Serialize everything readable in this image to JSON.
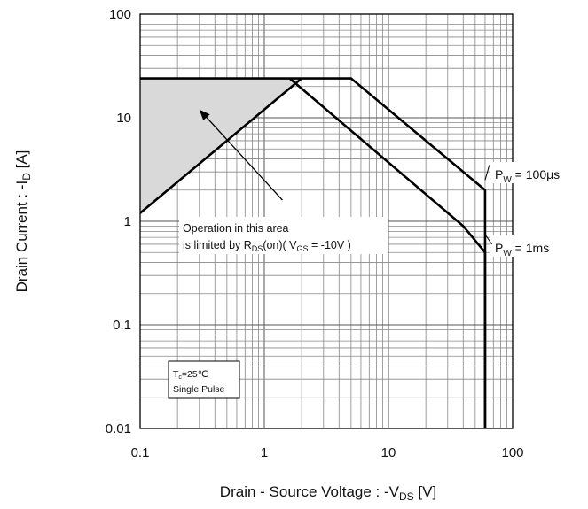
{
  "chart_data": {
    "type": "line",
    "x_scale": "log",
    "y_scale": "log",
    "xlim": [
      0.1,
      100
    ],
    "ylim": [
      0.01,
      100
    ],
    "grid": true,
    "x_ticks": [
      "0.1",
      "1",
      "10",
      "100"
    ],
    "y_ticks": [
      "0.01",
      "0.1",
      "1",
      "10",
      "100"
    ],
    "xlabel": {
      "main": "Drain - Source Voltage : -V",
      "sub": "DS",
      "tail": " [V]"
    },
    "ylabel": {
      "main": "Drain Current : -I",
      "sub": "D",
      "tail": " [A]"
    },
    "series": [
      {
        "name": "P_W = 100μs",
        "color": "#000000",
        "points": [
          [
            0.1,
            24
          ],
          [
            5,
            24
          ],
          [
            60,
            2
          ],
          [
            60,
            0.01
          ]
        ]
      },
      {
        "name": "P_W = 1ms",
        "color": "#000000",
        "points": [
          [
            1.6,
            24
          ],
          [
            40,
            0.9
          ],
          [
            60,
            0.5
          ],
          [
            60,
            0.01
          ]
        ]
      },
      {
        "name": "R_DS(on) limit",
        "color": "#000000",
        "points": [
          [
            0.1,
            1.2
          ],
          [
            2,
            24
          ]
        ]
      }
    ],
    "shaded_region": {
      "color": "#d9d9d9",
      "points": [
        [
          0.1,
          24
        ],
        [
          2,
          24
        ],
        [
          0.1,
          1.2
        ]
      ]
    },
    "annotations": {
      "region_note": {
        "line1": "Operation in this area",
        "line2_pre": "is limited by R",
        "line2_sub": "DS",
        "line2_mid": "(on)( V",
        "line2_sub2": "GS",
        "line2_post": " = -10V )",
        "arrow_from": [
          1.4,
          1.6
        ],
        "arrow_to": [
          0.3,
          12
        ]
      },
      "label_100us": {
        "pre": "P",
        "sub": "W",
        "post": " = 100μs",
        "arrow_from": [
          60,
          2.5
        ],
        "arrow_to": [
          65,
          3.5
        ]
      },
      "label_1ms": {
        "pre": "P",
        "sub": "W",
        "post": " = 1ms",
        "arrow_from": [
          60,
          0.75
        ],
        "arrow_to": [
          68,
          0.6
        ]
      },
      "conditions_box": {
        "line1_pre": "T",
        "line1_sub": "c",
        "line1_post": "=25℃",
        "line2": "Single Pulse"
      }
    }
  }
}
